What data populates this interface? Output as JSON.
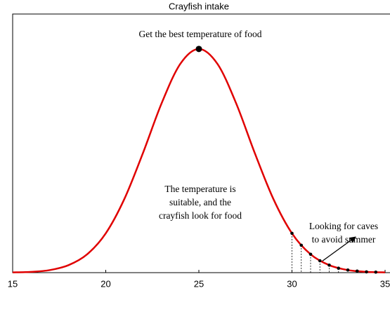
{
  "chart_data": {
    "type": "line",
    "title": "Crayfish intake",
    "xlim": [
      15,
      35
    ],
    "ylim": [
      0,
      1
    ],
    "xticks": [
      15,
      20,
      25,
      30,
      35
    ],
    "curve": {
      "color": "#e00000",
      "x": [
        15,
        16,
        17,
        18,
        19,
        20,
        21,
        22,
        23,
        24,
        25,
        26,
        27,
        28,
        29,
        30,
        31,
        32,
        33,
        34,
        35
      ],
      "values": [
        0.001,
        0.003,
        0.01,
        0.029,
        0.071,
        0.152,
        0.285,
        0.463,
        0.655,
        0.807,
        0.865,
        0.807,
        0.655,
        0.463,
        0.285,
        0.152,
        0.071,
        0.029,
        0.01,
        0.003,
        0.001
      ]
    },
    "markers": {
      "color": "#000000",
      "x": [
        30,
        30.5,
        31,
        31.5,
        32,
        32.5,
        33,
        33.5,
        34,
        34.5
      ],
      "values": [
        0.152,
        0.106,
        0.071,
        0.046,
        0.029,
        0.017,
        0.01,
        0.006,
        0.003,
        0.002
      ]
    },
    "peak": {
      "x": 25,
      "value": 0.865
    },
    "annotations": {
      "peak_label": "Get the best temperature of food",
      "middle_label": [
        "The temperature is",
        "suitable, and the",
        "crayfish look for food"
      ],
      "tail_label": [
        "Looking for caves",
        "to avoid summer"
      ]
    }
  }
}
